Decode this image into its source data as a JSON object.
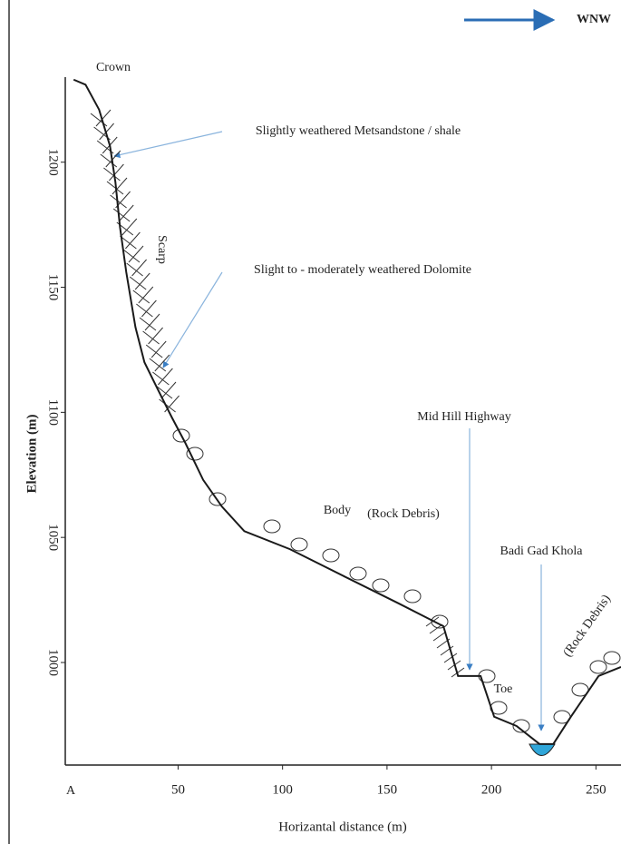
{
  "chart_data": {
    "type": "line",
    "x_label": "Horizantal distance (m)",
    "y_label": "Elevation (m)",
    "x": [
      0,
      5.7,
      12.2,
      17.4,
      20,
      22.2,
      25.2,
      29.6,
      33.9,
      40.4,
      47,
      53.5,
      62,
      71,
      81.7,
      103.5,
      129.6,
      155.6,
      177,
      184,
      194.8,
      201.3,
      212,
      223,
      229.6,
      238,
      251.3,
      262
    ],
    "values": [
      1233,
      1231,
      1221,
      1206.5,
      1192,
      1174,
      1156,
      1134,
      1120,
      1109,
      1098,
      1087.7,
      1073,
      1062.3,
      1052.5,
      1045.3,
      1034.4,
      1023.6,
      1014.5,
      994.6,
      994.6,
      978.3,
      974.6,
      967.4,
      967.4,
      978.3,
      994.6,
      998.2
    ],
    "color": "#1a1a1a",
    "xlim": [
      -4,
      262
    ],
    "ylim": [
      959,
      1234
    ],
    "xticks": [
      50,
      100,
      150,
      200,
      250
    ],
    "yticks": [
      1000,
      1050,
      1100,
      1150,
      1200
    ],
    "annotations": [
      "WNW",
      "Crown",
      "Slightly weathered Metsandstone / shale",
      "Scarp",
      "Slight to - moderately weathered Dolomite",
      "Mid Hill Highway",
      "Body",
      "(Rock Debris)",
      "Badi Gad Khola",
      "(Rock Debris)",
      "Toe",
      "A"
    ]
  }
}
